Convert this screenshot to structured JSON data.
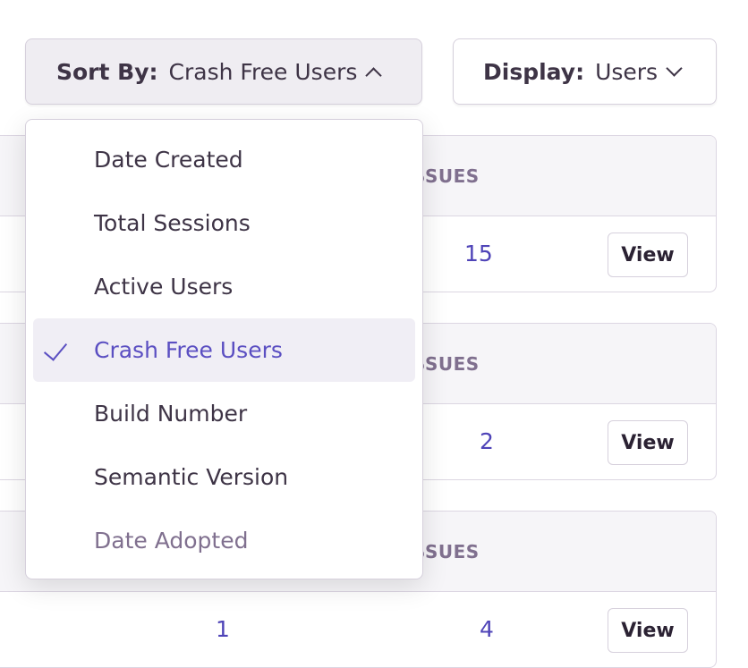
{
  "sort": {
    "label": "Sort By:",
    "value": "Crash Free Users"
  },
  "display": {
    "label": "Display:",
    "value": "Users"
  },
  "menu": {
    "items": [
      {
        "label": "Date Created"
      },
      {
        "label": "Total Sessions"
      },
      {
        "label": "Active Users"
      },
      {
        "label": "Crash Free Users",
        "selected": true
      },
      {
        "label": "Build Number"
      },
      {
        "label": "Semantic Version"
      },
      {
        "label": "Date Adopted",
        "disabled": true
      }
    ]
  },
  "cards": [
    {
      "header": "ISSUES",
      "issues": "15",
      "view": "View"
    },
    {
      "header": "ISSUES",
      "issues": "2",
      "view": "View"
    },
    {
      "header": "ISSUES",
      "other": "1",
      "issues": "4",
      "view": "View"
    }
  ],
  "colors": {
    "accent": "#5b4fc2",
    "link": "#4f44b8",
    "text": "#3e3446"
  }
}
